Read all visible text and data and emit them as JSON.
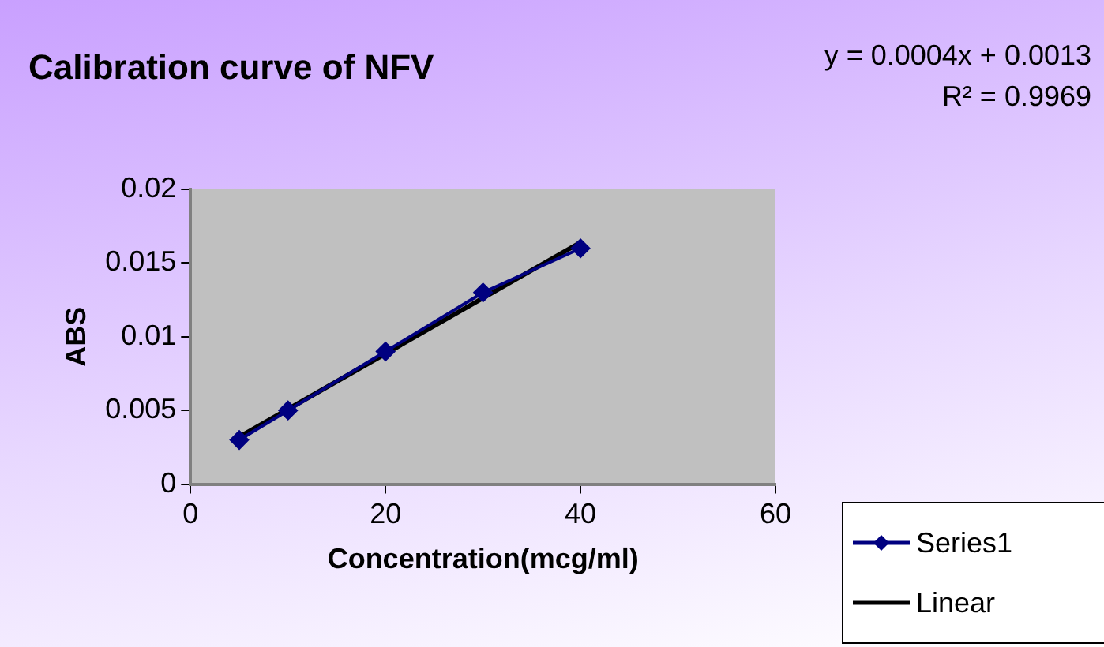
{
  "chart_data": {
    "type": "scatter",
    "title": "Calibration curve of NFV",
    "xlabel": "Concentration(mcg/ml)",
    "ylabel": "ABS",
    "annotations": [
      "y = 0.0004x + 0.0013",
      "R² = 0.9969"
    ],
    "series": [
      {
        "name": "Series1",
        "type": "line",
        "color": "#000080",
        "x": [
          5,
          10,
          20,
          30,
          40
        ],
        "values": [
          0.003,
          0.005,
          0.009,
          0.013,
          0.016
        ],
        "marker": "diamond"
      },
      {
        "name": "Linear",
        "type": "line",
        "color": "#000000",
        "x": [
          5,
          40
        ],
        "values": [
          0.0032,
          0.0164
        ],
        "marker": "none"
      }
    ],
    "xlim": [
      0,
      60
    ],
    "xticks": [
      0,
      20,
      40,
      60
    ],
    "ylim": [
      0,
      0.02
    ],
    "yticks": [
      0,
      0.005,
      0.01,
      0.015,
      0.02
    ],
    "grid": false,
    "legend": "bottom right"
  }
}
